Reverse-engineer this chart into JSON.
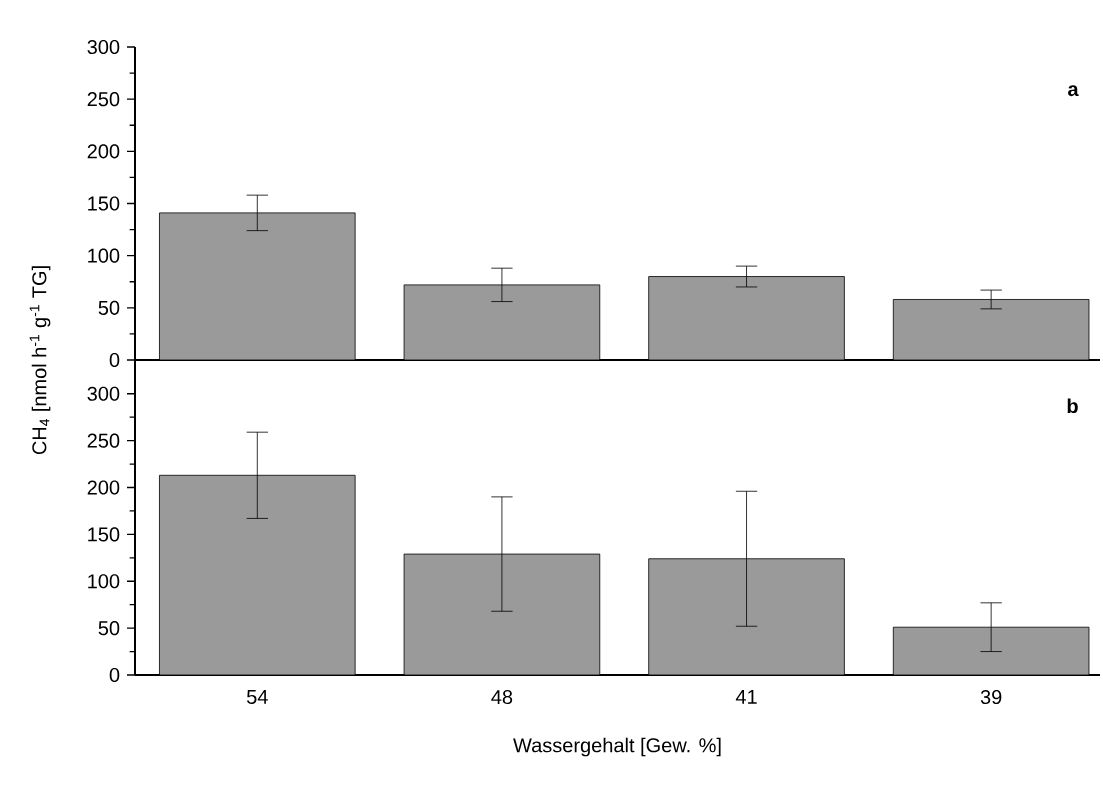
{
  "chart_data": [
    {
      "type": "bar",
      "categories": [
        "54",
        "48",
        "41",
        "39"
      ],
      "ylabel": "CH$_{4}$ [nmol h$^{-1}$ g$^{-1}$ TG]",
      "annotations": [
        "a"
      ],
      "tick_labels": "y",
      "color": "#9a9a9a",
      "values": [
        141,
        72,
        80,
        58
      ],
      "errors": [
        17,
        16,
        10,
        9
      ],
      "ylim": [
        0,
        300
      ],
      "yticks": [
        0,
        50,
        100,
        150,
        200,
        250,
        300
      ],
      "grid": false
    },
    {
      "type": "bar",
      "categories": [
        "54",
        "48",
        "41",
        "39"
      ],
      "xlabel": "Wassergehalt [Gew. %]",
      "annotations": [
        "b"
      ],
      "color": "#9a9a9a",
      "values": [
        213,
        129,
        124,
        51
      ],
      "errors": [
        46,
        61,
        72,
        26
      ],
      "ylim": [
        0,
        336
      ],
      "yticks": [
        0,
        50,
        100,
        150,
        200,
        250,
        300
      ],
      "grid": false
    }
  ]
}
